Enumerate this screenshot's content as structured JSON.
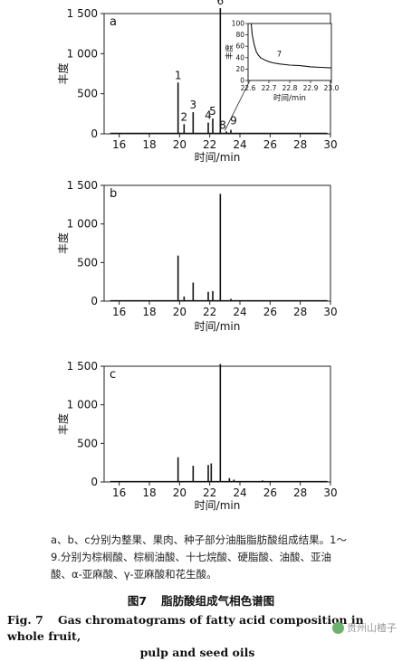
{
  "chart_data": [
    {
      "type": "line",
      "panel_label": "a",
      "xlabel": "时间/min",
      "ylabel": "丰度",
      "xlim": [
        15,
        30
      ],
      "ylim": [
        0,
        1500
      ],
      "xticks": [
        "16",
        "18",
        "20",
        "22",
        "24",
        "26",
        "28",
        "30"
      ],
      "yticks": [
        "0",
        "500",
        "1 000",
        "1 500"
      ],
      "peaks": [
        {
          "label": "1",
          "x": 19.9,
          "y": 640
        },
        {
          "label": "2",
          "x": 20.3,
          "y": 120
        },
        {
          "label": "3",
          "x": 20.9,
          "y": 270
        },
        {
          "label": "4",
          "x": 21.9,
          "y": 140
        },
        {
          "label": "5",
          "x": 22.2,
          "y": 190
        },
        {
          "label": "6",
          "x": 22.7,
          "y": 1600
        },
        {
          "label": "8",
          "x": 23.1,
          "y": 30
        },
        {
          "label": "9",
          "x": 23.4,
          "y": 50
        }
      ],
      "inset": {
        "xlabel": "时间/min",
        "ylabel": "丰度",
        "xlim": [
          22.6,
          23.0
        ],
        "ylim": [
          0,
          100
        ],
        "xticks": [
          "22.6",
          "22.7",
          "22.8",
          "22.9",
          "23.0"
        ],
        "yticks": [
          "0",
          "20",
          "40",
          "60",
          "80",
          "100"
        ],
        "peak_label": "7",
        "x": [
          22.615,
          22.62,
          22.63,
          22.64,
          22.65,
          22.66,
          22.68,
          22.7,
          22.72,
          22.75,
          22.8,
          22.85,
          22.9,
          22.95,
          23.0
        ],
        "y": [
          100,
          80,
          62,
          50,
          44,
          40,
          36,
          33,
          31,
          29,
          27,
          26,
          24,
          23,
          22
        ]
      }
    },
    {
      "type": "line",
      "panel_label": "b",
      "xlabel": "时间/min",
      "ylabel": "丰度",
      "xlim": [
        15,
        30
      ],
      "ylim": [
        0,
        1500
      ],
      "xticks": [
        "16",
        "18",
        "20",
        "22",
        "24",
        "26",
        "28",
        "30"
      ],
      "yticks": [
        "0",
        "500",
        "1 000",
        "1 500"
      ],
      "peaks": [
        {
          "x": 19.9,
          "y": 590
        },
        {
          "x": 20.3,
          "y": 60
        },
        {
          "x": 20.9,
          "y": 240
        },
        {
          "x": 21.9,
          "y": 120
        },
        {
          "x": 22.2,
          "y": 130
        },
        {
          "x": 22.7,
          "y": 1390
        },
        {
          "x": 23.4,
          "y": 30
        }
      ]
    },
    {
      "type": "line",
      "panel_label": "c",
      "xlabel": "时间/min",
      "ylabel": "丰度",
      "xlim": [
        15,
        30
      ],
      "ylim": [
        0,
        1500
      ],
      "xticks": [
        "16",
        "18",
        "20",
        "22",
        "24",
        "26",
        "28",
        "30"
      ],
      "yticks": [
        "0",
        "500",
        "1 000",
        "1 500"
      ],
      "peaks": [
        {
          "x": 19.9,
          "y": 320
        },
        {
          "x": 20.9,
          "y": 210
        },
        {
          "x": 21.9,
          "y": 220
        },
        {
          "x": 22.1,
          "y": 240
        },
        {
          "x": 22.7,
          "y": 1530
        },
        {
          "x": 23.3,
          "y": 50
        },
        {
          "x": 23.6,
          "y": 30
        },
        {
          "x": 25.5,
          "y": 20
        }
      ]
    }
  ],
  "caption": {
    "cn": "a、b、c分别为整果、果肉、种子部分油脂脂肪酸组成结果。1～9.分别为棕榈酸、棕榈油酸、十七烷酸、硬脂酸、油酸、亚油酸、α-亚麻酸、γ-亚麻酸和花生酸。",
    "fig_no_cn": "图7",
    "title_cn": "脂肪酸组成气相色谱图",
    "fig_no_en": "Fig. 7",
    "title_en_1": "Gas chromatograms of fatty acid composition in whole fruit,",
    "title_en_2": "pulp and seed oils"
  },
  "watermark": "贵州山楂子"
}
